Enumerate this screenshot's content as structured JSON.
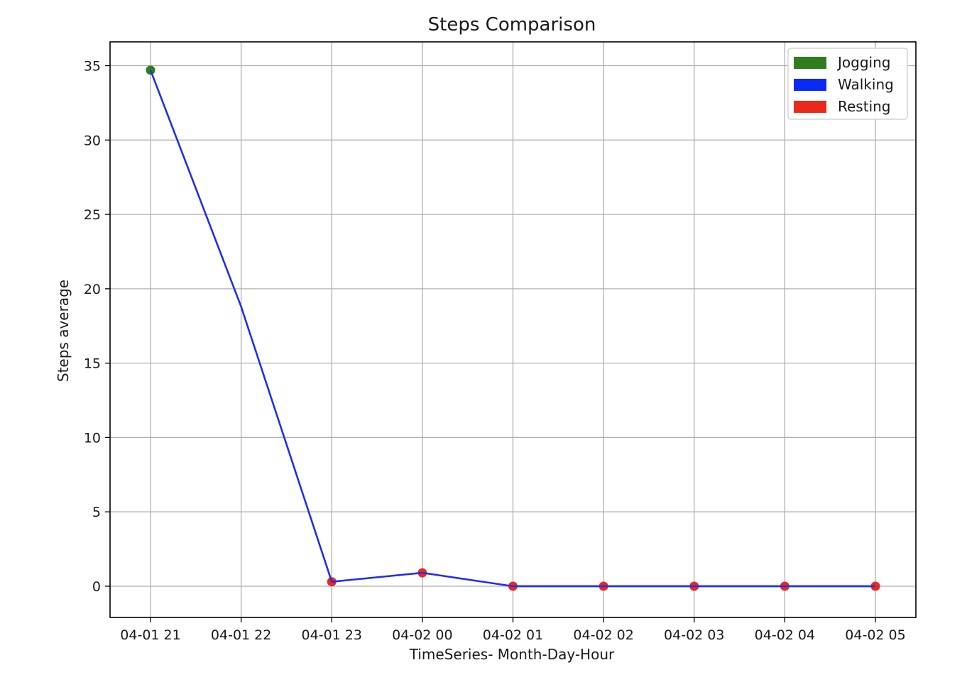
{
  "chart_data": {
    "type": "line",
    "title": "Steps Comparison",
    "xlabel": "TimeSeries- Month-Day-Hour",
    "ylabel": "Steps average",
    "categories": [
      "04-01 21",
      "04-01 22",
      "04-01 23",
      "04-02 00",
      "04-02 01",
      "04-02 02",
      "04-02 03",
      "04-02 04",
      "04-02 05"
    ],
    "ylim": [
      -2.1,
      36.6
    ],
    "yticks": [
      0,
      5,
      10,
      15,
      20,
      25,
      30,
      35
    ],
    "grid": true,
    "legend_position": "top-right",
    "line": {
      "color": "#1f2cf5",
      "values": [
        34.7,
        18.8,
        0.3,
        0.9,
        0.0,
        0.0,
        0.0,
        0.0,
        0.0
      ]
    },
    "series": [
      {
        "name": "Jogging",
        "color": "#2e7d1f",
        "indices": [
          0
        ]
      },
      {
        "name": "Walking",
        "color": "#0a2bf5",
        "indices": []
      },
      {
        "name": "Resting",
        "color": "#e8291c",
        "indices": [
          2,
          3,
          4,
          5,
          6,
          7,
          8
        ]
      }
    ]
  }
}
